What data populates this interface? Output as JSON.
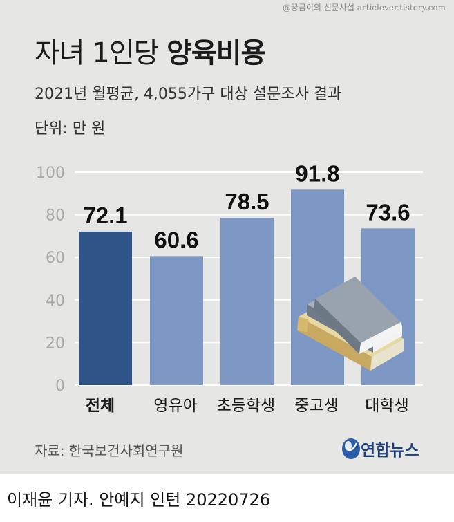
{
  "watermark": "@꿍금이의 신문사설 articlever.tistory.com",
  "title_normal": "자녀 1인당 ",
  "title_bold": "양육비용",
  "subtitle": "2021년 월평균, 4,055가구 대상 설문조사 결과",
  "unit": "단위: 만 원",
  "source": "자료: 한국보건사회연구원",
  "logo_text": "연합뉴스",
  "footer": "이재윤 기자. 안예지 인턴  20220726",
  "colors": {
    "background": "#e6e6e5",
    "bar": "#7d98c4",
    "bar_highlight": "#2f5488",
    "grid": "#ffffff",
    "axis_text": "#a8a8a8"
  },
  "chart_data": {
    "type": "bar",
    "categories": [
      "전체",
      "영유아",
      "초등학생",
      "중고생",
      "대학생"
    ],
    "values": [
      72.1,
      60.6,
      78.5,
      91.8,
      73.6
    ],
    "value_labels": [
      "72.1",
      "60.6",
      "78.5",
      "91.8",
      "73.6"
    ],
    "highlight_index": 0,
    "yticks": [
      0,
      20,
      40,
      60,
      80,
      100
    ],
    "ylim": [
      0,
      100
    ],
    "grid": true,
    "legend": "none"
  },
  "decoration_icon": "books-icon"
}
